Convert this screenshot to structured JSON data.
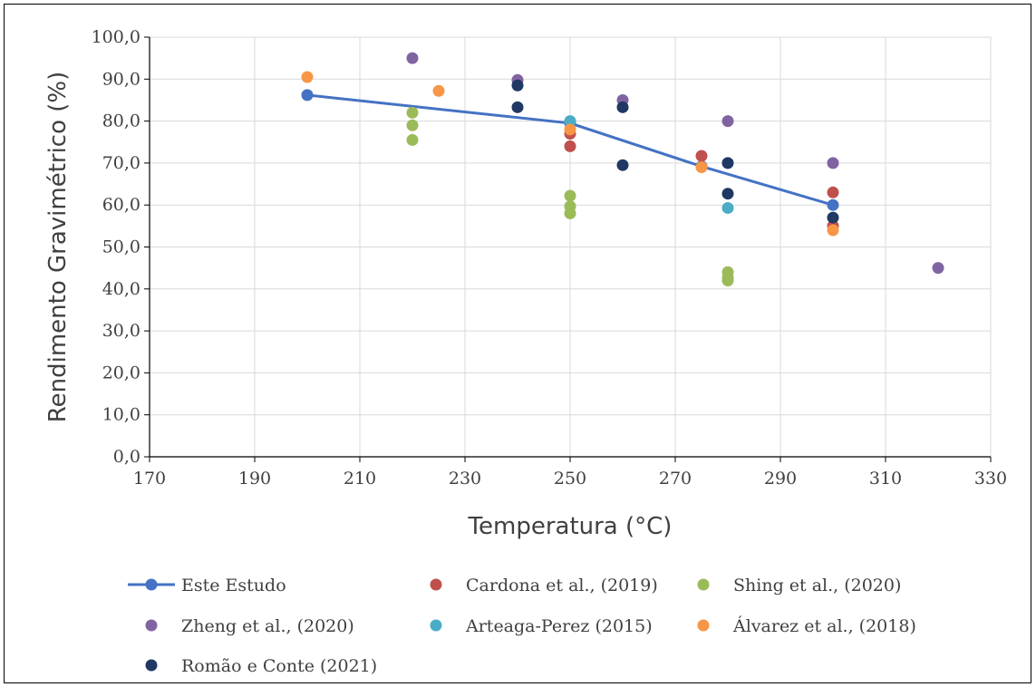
{
  "chart_data": {
    "type": "scatter",
    "xlabel": "Temperatura (°C)",
    "ylabel": "Rendimento Gravimétrico (%)",
    "xlim": [
      170,
      330
    ],
    "ylim": [
      0,
      100
    ],
    "x_ticks": [
      "170",
      "190",
      "210",
      "230",
      "250",
      "270",
      "290",
      "310",
      "330"
    ],
    "y_ticks": [
      "0,0",
      "10,0",
      "20,0",
      "30,0",
      "40,0",
      "50,0",
      "60,0",
      "70,0",
      "80,0",
      "90,0",
      "100,0"
    ],
    "grid": true,
    "legend_position": "bottom",
    "series": [
      {
        "name": "Este Estudo",
        "color": "#4472c4",
        "line": true,
        "points": [
          [
            200,
            86.2
          ],
          [
            250,
            79.5
          ],
          [
            275,
            69.2
          ],
          [
            300,
            60.0
          ]
        ]
      },
      {
        "name": "Cardona et al., (2019)",
        "color": "#c0504d",
        "line": false,
        "points": [
          [
            250,
            77.0
          ],
          [
            250,
            74.0
          ],
          [
            275,
            71.7
          ],
          [
            300,
            63.0
          ],
          [
            300,
            55.0
          ]
        ]
      },
      {
        "name": "Shing et al., (2020)",
        "color": "#9bbb59",
        "line": false,
        "points": [
          [
            220,
            82.0
          ],
          [
            220,
            79.0
          ],
          [
            220,
            75.5
          ],
          [
            250,
            62.2
          ],
          [
            250,
            59.7
          ],
          [
            250,
            58.0
          ],
          [
            280,
            44.0
          ],
          [
            280,
            42.7
          ],
          [
            280,
            42.0
          ]
        ]
      },
      {
        "name": "Zheng et al., (2020)",
        "color": "#8064a2",
        "line": false,
        "points": [
          [
            220,
            95.0
          ],
          [
            240,
            89.8
          ],
          [
            260,
            85.0
          ],
          [
            280,
            80.0
          ],
          [
            300,
            70.0
          ],
          [
            320,
            45.0
          ]
        ]
      },
      {
        "name": "Arteaga-Perez (2015)",
        "color": "#4bacc6",
        "line": false,
        "points": [
          [
            250,
            80.0
          ],
          [
            280,
            59.3
          ]
        ]
      },
      {
        "name": "Álvarez et al., (2018)",
        "color": "#f79646",
        "line": false,
        "points": [
          [
            200,
            90.5
          ],
          [
            225,
            87.2
          ],
          [
            250,
            78.0
          ],
          [
            275,
            69.0
          ],
          [
            300,
            54.0
          ]
        ]
      },
      {
        "name": "Romão e Conte (2021)",
        "color": "#1f3864",
        "line": false,
        "points": [
          [
            240,
            88.5
          ],
          [
            240,
            83.3
          ],
          [
            260,
            83.3
          ],
          [
            260,
            69.5
          ],
          [
            280,
            70.0
          ],
          [
            280,
            62.7
          ],
          [
            300,
            57.0
          ]
        ]
      }
    ]
  }
}
